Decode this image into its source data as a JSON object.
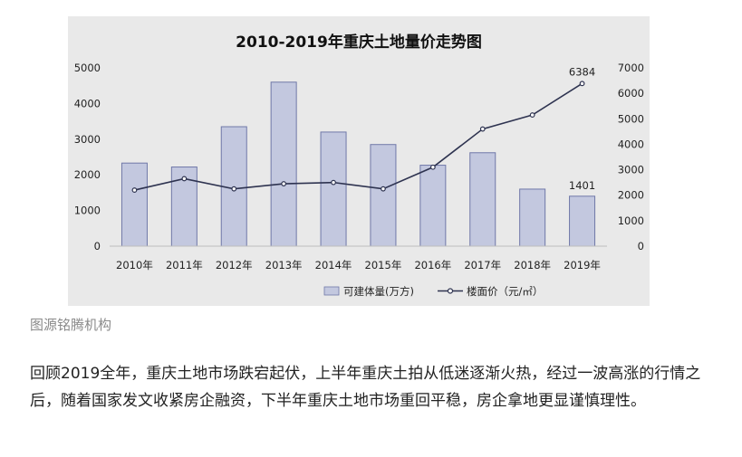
{
  "chart_data": {
    "type": "bar+line",
    "title": "2010-2019年重庆土地量价走势图",
    "categories": [
      "2010年",
      "2011年",
      "2012年",
      "2013年",
      "2014年",
      "2015年",
      "2016年",
      "2017年",
      "2018年",
      "2019年"
    ],
    "series": [
      {
        "name": "可建体量(万方)",
        "type": "bar",
        "axis": "left",
        "values": [
          2330,
          2220,
          3350,
          4600,
          3200,
          2850,
          2270,
          2620,
          1600,
          1401
        ],
        "color": "#c3c8df"
      },
      {
        "name": "楼面价（元/㎡）",
        "type": "line",
        "axis": "right",
        "values": [
          2200,
          2650,
          2250,
          2450,
          2500,
          2250,
          3100,
          4600,
          5150,
          6384
        ],
        "color": "#2e3350"
      }
    ],
    "left_axis": {
      "ylim": [
        0,
        5000
      ],
      "ticks": [
        "0",
        "1000",
        "2000",
        "3000",
        "4000",
        "5000"
      ]
    },
    "right_axis": {
      "ylim": [
        0,
        7000
      ],
      "ticks": [
        "0",
        "1000",
        "2000",
        "3000",
        "4000",
        "5000",
        "6000",
        "7000"
      ]
    },
    "data_labels": [
      {
        "series": "楼面价（元/㎡）",
        "category": "2019年",
        "text": "6384"
      },
      {
        "series": "可建体量(万方)",
        "category": "2019年",
        "text": "1401"
      }
    ],
    "legend": {
      "placement": "bottom-right"
    }
  },
  "caption": "图源铭腾机构",
  "body_text": "回顾2019全年，重庆土地市场跌宕起伏，上半年重庆土拍从低迷逐渐火热，经过一波高涨的行情之后，随着国家发文收紧房企融资，下半年重庆土地市场重回平稳，房企拿地更显谨慎理性。"
}
